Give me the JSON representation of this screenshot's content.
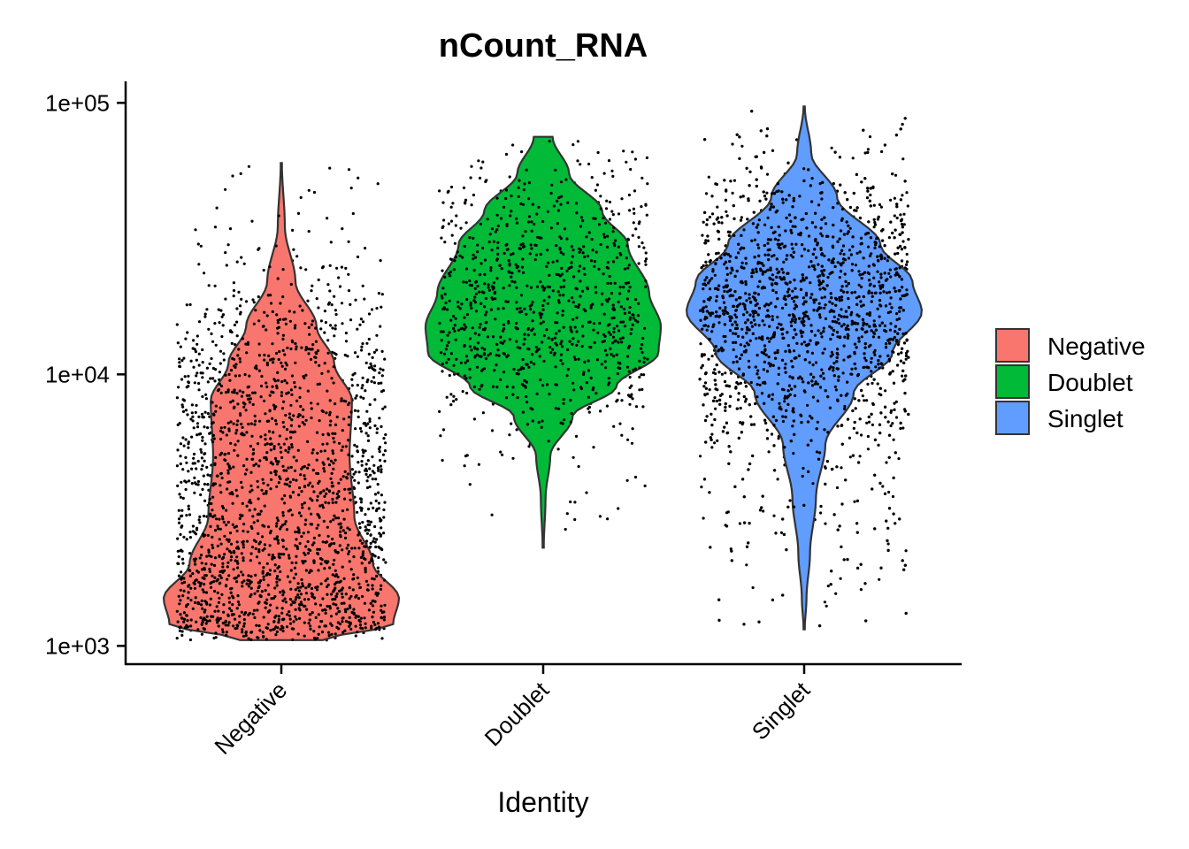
{
  "chart_data": {
    "type": "violin",
    "title": "nCount_RNA",
    "xlabel": "Identity",
    "ylabel": "",
    "y_scale": "log10",
    "ylim": [
      850,
      120000
    ],
    "yticks": [
      1000,
      10000,
      100000
    ],
    "ytick_labels": [
      "1e+03",
      "1e+04",
      "1e+05"
    ],
    "categories": [
      "Negative",
      "Doublet",
      "Singlet"
    ],
    "legend": {
      "position": "right",
      "entries": [
        "Negative",
        "Doublet",
        "Singlet"
      ]
    },
    "grid": false,
    "series": [
      {
        "name": "Negative",
        "color": "#F8766D",
        "min": 1050,
        "max": 60000,
        "mode": 1500,
        "jitter_points": 2000,
        "profile": [
          {
            "value": 1050,
            "width": 0.35
          },
          {
            "value": 1200,
            "width": 0.95
          },
          {
            "value": 1500,
            "width": 1.0
          },
          {
            "value": 2000,
            "width": 0.78
          },
          {
            "value": 3000,
            "width": 0.62
          },
          {
            "value": 5000,
            "width": 0.58
          },
          {
            "value": 8000,
            "width": 0.6
          },
          {
            "value": 11000,
            "width": 0.45
          },
          {
            "value": 15000,
            "width": 0.3
          },
          {
            "value": 22000,
            "width": 0.12
          },
          {
            "value": 35000,
            "width": 0.03
          },
          {
            "value": 60000,
            "width": 0.005
          }
        ]
      },
      {
        "name": "Doublet",
        "color": "#00BA38",
        "min": 2300,
        "max": 75000,
        "mode": 15000,
        "jitter_points": 900,
        "profile": [
          {
            "value": 2300,
            "width": 0.005
          },
          {
            "value": 3500,
            "width": 0.02
          },
          {
            "value": 5000,
            "width": 0.06
          },
          {
            "value": 7000,
            "width": 0.25
          },
          {
            "value": 9000,
            "width": 0.62
          },
          {
            "value": 12000,
            "width": 0.98
          },
          {
            "value": 15000,
            "width": 1.0
          },
          {
            "value": 20000,
            "width": 0.9
          },
          {
            "value": 30000,
            "width": 0.72
          },
          {
            "value": 40000,
            "width": 0.5
          },
          {
            "value": 55000,
            "width": 0.22
          },
          {
            "value": 75000,
            "width": 0.08
          }
        ]
      },
      {
        "name": "Singlet",
        "color": "#619CFF",
        "min": 1150,
        "max": 97000,
        "mode": 17000,
        "jitter_points": 2600,
        "profile": [
          {
            "value": 1150,
            "width": 0.005
          },
          {
            "value": 1500,
            "width": 0.02
          },
          {
            "value": 2200,
            "width": 0.05
          },
          {
            "value": 3500,
            "width": 0.1
          },
          {
            "value": 5500,
            "width": 0.18
          },
          {
            "value": 8500,
            "width": 0.42
          },
          {
            "value": 12000,
            "width": 0.75
          },
          {
            "value": 17000,
            "width": 1.0
          },
          {
            "value": 22000,
            "width": 0.92
          },
          {
            "value": 30000,
            "width": 0.65
          },
          {
            "value": 45000,
            "width": 0.28
          },
          {
            "value": 65000,
            "width": 0.06
          },
          {
            "value": 97000,
            "width": 0.005
          }
        ]
      }
    ]
  }
}
